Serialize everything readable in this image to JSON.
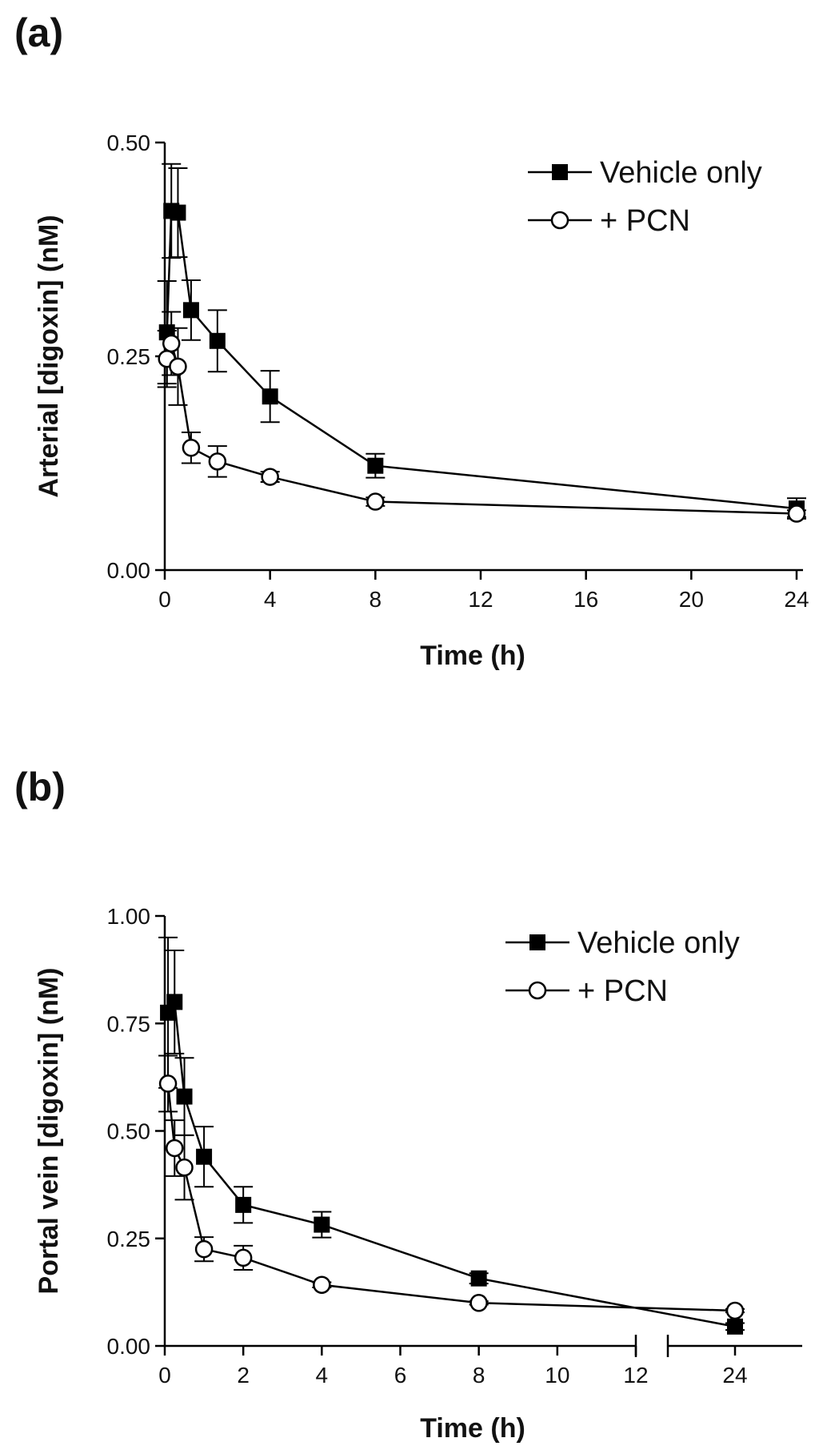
{
  "panels": [
    {
      "panel_label": "(a)",
      "legend": [
        "Vehicle only",
        "+ PCN"
      ],
      "xlabel": "Time (h)",
      "ylabel": "Arterial [digoxin] (nM)"
    },
    {
      "panel_label": "(b)",
      "legend": [
        "Vehicle only",
        "+ PCN"
      ],
      "xlabel": "Time (h)",
      "ylabel": "Portal vein [digoxin] (nM)"
    }
  ],
  "chart_data": [
    {
      "type": "line",
      "title": "",
      "xlabel": "Time (h)",
      "ylabel": "Arterial [digoxin] (nM)",
      "xlim": [
        0,
        24
      ],
      "ylim": [
        0,
        0.5
      ],
      "xticks": [
        0,
        4,
        8,
        12,
        16,
        20,
        24
      ],
      "xtick_labels": [
        "0",
        "4",
        "8",
        "12",
        "16",
        "20",
        "24"
      ],
      "yticks": [
        0,
        0.25,
        0.5
      ],
      "ytick_labels": [
        "0.00",
        "0.25",
        "0.50"
      ],
      "grid": false,
      "legend_position": "top-right",
      "series": [
        {
          "name": "Vehicle only",
          "marker": "filled-square",
          "color": "#000000",
          "x": [
            0.083,
            0.25,
            0.5,
            1,
            2,
            4,
            8,
            24
          ],
          "y": [
            0.278,
            0.42,
            0.418,
            0.304,
            0.268,
            0.203,
            0.122,
            0.072
          ],
          "error": [
            0.06,
            0.055,
            0.052,
            0.035,
            0.036,
            0.03,
            0.014,
            0.012
          ]
        },
        {
          "name": "+ PCN",
          "marker": "open-circle",
          "color": "#000000",
          "x": [
            0.083,
            0.25,
            0.5,
            1,
            2,
            4,
            8,
            24
          ],
          "y": [
            0.247,
            0.265,
            0.238,
            0.143,
            0.127,
            0.109,
            0.08,
            0.066
          ],
          "error": [
            0.033,
            0.037,
            0.045,
            0.018,
            0.018,
            0.006,
            0.005,
            0.004
          ]
        }
      ]
    },
    {
      "type": "line",
      "title": "",
      "xlabel": "Time (h)",
      "ylabel": "Portal vein [digoxin] (nM)",
      "xlim": [
        0,
        24
      ],
      "ylim": [
        0,
        1
      ],
      "x_axis_break": [
        12,
        22.5
      ],
      "xticks": [
        0,
        2,
        4,
        6,
        8,
        10,
        12,
        24
      ],
      "xtick_labels": [
        "0",
        "2",
        "4",
        "6",
        "8",
        "10",
        "12",
        "24"
      ],
      "yticks": [
        0,
        0.25,
        0.5,
        0.75,
        1
      ],
      "ytick_labels": [
        "0.00",
        "0.25",
        "0.50",
        "0.75",
        "1.00"
      ],
      "grid": false,
      "legend_position": "top-right",
      "series": [
        {
          "name": "Vehicle only",
          "marker": "filled-square",
          "color": "#000000",
          "x": [
            0.083,
            0.25,
            0.5,
            1,
            2,
            4,
            8,
            24
          ],
          "y": [
            0.775,
            0.8,
            0.58,
            0.44,
            0.328,
            0.282,
            0.157,
            0.045
          ],
          "error": [
            0.175,
            0.12,
            0.09,
            0.07,
            0.042,
            0.03,
            0.012,
            0.008
          ]
        },
        {
          "name": "+ PCN",
          "marker": "open-circle",
          "color": "#000000",
          "x": [
            0.083,
            0.25,
            0.5,
            1,
            2,
            4,
            8,
            24
          ],
          "y": [
            0.61,
            0.46,
            0.415,
            0.225,
            0.205,
            0.142,
            0.1,
            0.082
          ],
          "error": [
            0.065,
            0.065,
            0.075,
            0.028,
            0.028,
            0.006,
            0.004,
            0.004
          ]
        }
      ]
    }
  ]
}
